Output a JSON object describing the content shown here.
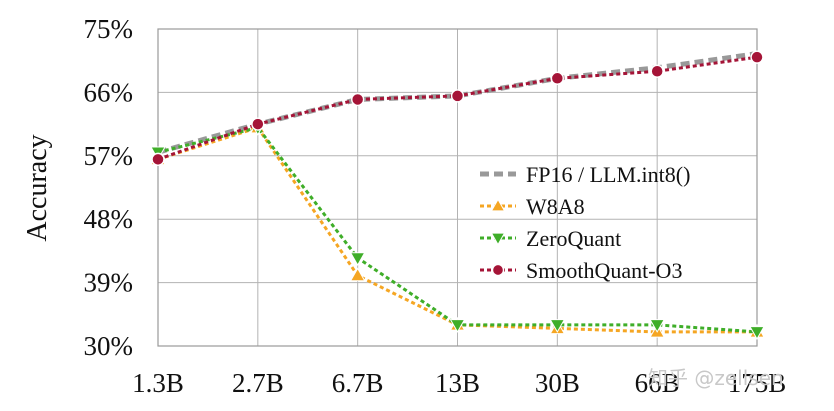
{
  "chart_data": {
    "type": "line",
    "title": "",
    "xlabel": "",
    "ylabel": "Accuracy",
    "categories": [
      "1.3B",
      "2.7B",
      "6.7B",
      "13B",
      "30B",
      "66B",
      "175B"
    ],
    "yticks": [
      "30%",
      "39%",
      "48%",
      "57%",
      "66%",
      "75%"
    ],
    "ylim": [
      30,
      75
    ],
    "grid": true,
    "legend_position": "center-right",
    "series": [
      {
        "name": "FP16 / LLM.int8()",
        "values": [
          57.5,
          61.5,
          65.0,
          65.5,
          68.0,
          69.5,
          71.5
        ],
        "color": "#999999",
        "marker": "none",
        "dash": "dashed"
      },
      {
        "name": "W8A8",
        "values": [
          56.5,
          61.0,
          40.0,
          33.0,
          32.5,
          32.0,
          32.0
        ],
        "color": "#f5a623",
        "marker": "triangle-up",
        "dash": "dotted"
      },
      {
        "name": "ZeroQuant",
        "values": [
          57.5,
          61.0,
          42.5,
          33.0,
          33.0,
          33.0,
          32.0
        ],
        "color": "#3fae29",
        "marker": "triangle-down",
        "dash": "dotted"
      },
      {
        "name": "SmoothQuant-O3",
        "values": [
          56.5,
          61.5,
          65.0,
          65.5,
          68.0,
          69.0,
          71.0
        ],
        "color": "#a51437",
        "marker": "circle",
        "dash": "dotted"
      }
    ]
  },
  "watermark": "知乎 @zellsen"
}
